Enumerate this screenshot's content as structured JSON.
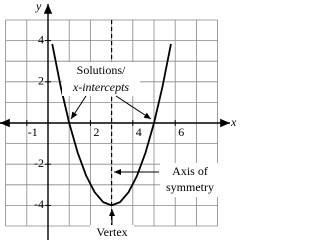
{
  "chart_data": {
    "type": "line",
    "x": [
      0.2,
      0.6,
      1.0,
      1.4,
      1.8,
      2.2,
      2.6,
      3.0,
      3.4,
      3.8,
      4.2,
      4.6,
      5.0,
      5.4,
      5.8
    ],
    "series": [
      {
        "color": "#000000",
        "values": [
          3.84,
          1.76,
          0,
          -1.44,
          -2.56,
          -3.36,
          -3.84,
          -4,
          -3.84,
          -3.36,
          -2.56,
          -1.44,
          0,
          1.76,
          3.84
        ]
      }
    ],
    "x_label": "x",
    "y_label": "y",
    "xlim": [
      -2,
      8
    ],
    "ylim": [
      -5,
      5
    ],
    "xticks": [
      -1,
      2,
      4,
      6
    ],
    "yticks": [
      -4,
      -2,
      2,
      4
    ],
    "xgrid": [
      -2,
      -1,
      0,
      1,
      2,
      3,
      4,
      5,
      6,
      7,
      8
    ],
    "ygrid": [
      -5,
      -4,
      -3,
      -2,
      -1,
      0,
      1,
      2,
      3,
      4,
      5
    ],
    "grid": true,
    "annotations": [
      "Solutions/",
      "x-intercepts",
      "Axis of",
      "symmetry",
      "Vertex"
    ]
  }
}
